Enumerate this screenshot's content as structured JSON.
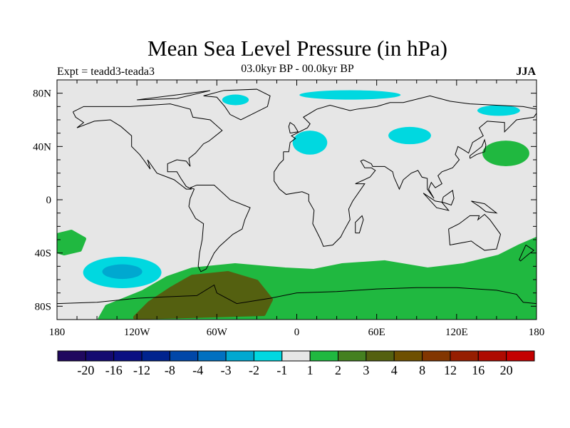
{
  "chart_data": {
    "type": "map",
    "title": "Mean Sea Level Pressure (in hPa)",
    "subtitle_left": "Expt = teadd3-teada3",
    "subtitle_center": "03.0kyr BP - 00.0kyr BP",
    "subtitle_right": "JJA",
    "xlim": [
      -180,
      180
    ],
    "ylim": [
      -90,
      90
    ],
    "x_ticks": [
      {
        "v": -180,
        "label": "180"
      },
      {
        "v": -120,
        "label": "120W"
      },
      {
        "v": -60,
        "label": "60W"
      },
      {
        "v": 0,
        "label": "0"
      },
      {
        "v": 60,
        "label": "60E"
      },
      {
        "v": 120,
        "label": "120E"
      },
      {
        "v": 180,
        "label": "180"
      }
    ],
    "y_ticks": [
      {
        "v": 80,
        "label": "80N"
      },
      {
        "v": 40,
        "label": "40N"
      },
      {
        "v": 0,
        "label": "0"
      },
      {
        "v": -40,
        "label": "40S"
      },
      {
        "v": -80,
        "label": "80S"
      }
    ],
    "colorbar": {
      "labels": [
        "-20",
        "-16",
        "-12",
        "-8",
        "-4",
        "-3",
        "-2",
        "-1",
        "1",
        "2",
        "3",
        "4",
        "8",
        "12",
        "16",
        "20"
      ],
      "colors": [
        "#20085e",
        "#140a70",
        "#0a0f82",
        "#00238e",
        "#0047a8",
        "#0070c0",
        "#00a8d0",
        "#00d8e0",
        "#e6e6e6",
        "#20b840",
        "#448020",
        "#546010",
        "#6e5000",
        "#823600",
        "#961e00",
        "#ae0a00",
        "#c40000"
      ]
    },
    "background_color": "#e6e6e6",
    "regions": [
      {
        "name": "southern-ocean-positive",
        "level": "1 to 2",
        "color": "#20b840",
        "polygon": [
          [
            -97.1,
            -58.9
          ],
          [
            -78.4,
            -52.5
          ],
          [
            -46.3,
            -49.3
          ],
          [
            -8.8,
            -52.5
          ],
          [
            12.6,
            -53.6
          ],
          [
            34,
            -49.3
          ],
          [
            66.1,
            -47.1
          ],
          [
            98.2,
            -52.5
          ],
          [
            125,
            -49.3
          ],
          [
            151.7,
            -42.9
          ],
          [
            167.8,
            -34.8
          ],
          [
            180,
            -29.5
          ],
          [
            180,
            -90
          ],
          [
            -147.9,
            -90
          ],
          [
            -142.5,
            -80.4
          ],
          [
            -115.8,
            -69.6
          ]
        ]
      },
      {
        "name": "antarctic-peninsula-positive",
        "level": "3 to 4",
        "color": "#546010",
        "polygon": [
          [
            -94.4,
            -67
          ],
          [
            -78.4,
            -57.9
          ],
          [
            -51.6,
            -55.2
          ],
          [
            -30.2,
            -61.6
          ],
          [
            -19.5,
            -75
          ],
          [
            -24.9,
            -85.7
          ],
          [
            -121.2,
            -88.4
          ],
          [
            -110.5,
            -77.7
          ]
        ]
      },
      {
        "name": "south-pacific-positive",
        "level": "1 to 2",
        "color": "#20b840",
        "polygon": [
          [
            -180,
            -26.8
          ],
          [
            -169.3,
            -24.1
          ],
          [
            -159.7,
            -29.5
          ],
          [
            -162.9,
            -37.5
          ],
          [
            -174.7,
            -40.2
          ],
          [
            -180,
            -38.6
          ]
        ]
      },
      {
        "name": "south-pacific-negative",
        "level": "-2 to -1",
        "color": "#00d8e0",
        "ellipse": [
          -131,
          -54.6,
          29.4,
          11.8
        ]
      },
      {
        "name": "south-pacific-negative-core",
        "level": "-3 to -2",
        "color": "#00a8d0",
        "ellipse": [
          -131,
          -54,
          15,
          5.5
        ]
      },
      {
        "name": "north-pacific-positive",
        "level": "1 to 2",
        "color": "#20b840",
        "ellipse": [
          157,
          34.8,
          17.6,
          9.6
        ]
      },
      {
        "name": "central-asia-negative",
        "level": "-2 to -1",
        "color": "#00d8e0",
        "ellipse": [
          84.8,
          48.2,
          16,
          6.5
        ]
      },
      {
        "name": "mediterranean-negative",
        "level": "-2 to -1",
        "color": "#00d8e0",
        "ellipse": [
          9.9,
          42.9,
          13,
          9
        ]
      },
      {
        "name": "bering-negative",
        "level": "-2 to -1",
        "color": "#00d8e0",
        "ellipse": [
          151.6,
          67,
          16,
          4
        ]
      },
      {
        "name": "arctic-negative",
        "level": "-2 to -1",
        "color": "#00d8e0",
        "ellipse": [
          40,
          78.7,
          38,
          3.5
        ]
      },
      {
        "name": "greenland-negative",
        "level": "-2 to -1",
        "color": "#00d8e0",
        "ellipse": [
          -46,
          75,
          10,
          4
        ]
      }
    ]
  }
}
